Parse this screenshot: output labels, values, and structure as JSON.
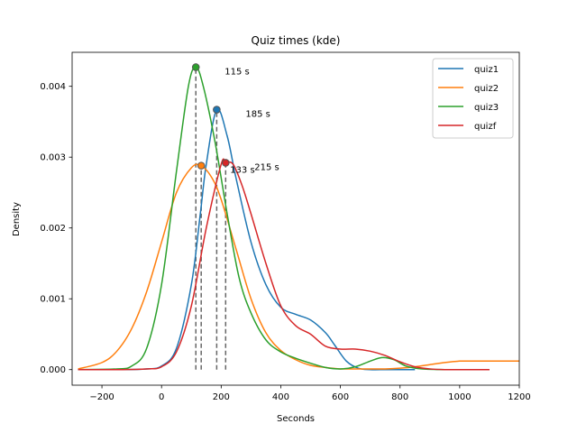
{
  "chart_data": {
    "type": "line",
    "title": "Quiz times (kde)",
    "xlabel": "Seconds",
    "ylabel": "Density",
    "xlim": [
      -300,
      1200
    ],
    "ylim": [
      -0.00022,
      0.00448
    ],
    "x_ticks": [
      -200,
      0,
      200,
      400,
      600,
      800,
      1000,
      1200
    ],
    "x_tick_labels": [
      "−200",
      "0",
      "200",
      "400",
      "600",
      "800",
      "1000",
      "1200"
    ],
    "y_ticks": [
      0,
      0.001,
      0.002,
      0.003,
      0.004
    ],
    "y_tick_labels": [
      "0.000",
      "0.001",
      "0.002",
      "0.003",
      "0.004"
    ],
    "grid": false,
    "legend_position": "top-right",
    "series": [
      {
        "name": "quiz1",
        "color": "#1f77b4",
        "x": [
          -280,
          -150,
          -50,
          0,
          50,
          100,
          130,
          150,
          185,
          220,
          250,
          300,
          350,
          400,
          450,
          500,
          550,
          580,
          620,
          660,
          700,
          750,
          800,
          850
        ],
        "y": [
          0,
          0,
          1e-05,
          5e-05,
          0.0003,
          0.0012,
          0.0022,
          0.0029,
          0.00367,
          0.0033,
          0.0027,
          0.0018,
          0.0012,
          0.00088,
          0.00078,
          0.0007,
          0.00052,
          0.00035,
          0.00012,
          2e-05,
          0,
          0,
          0,
          0
        ]
      },
      {
        "name": "quiz2",
        "color": "#ff7f0e",
        "x": [
          -280,
          -200,
          -150,
          -100,
          -50,
          0,
          50,
          100,
          133,
          170,
          200,
          250,
          300,
          350,
          400,
          450,
          500,
          550,
          600,
          650,
          700,
          750,
          800,
          850,
          900,
          950,
          1000,
          1050,
          1100,
          1200
        ],
        "y": [
          1e-05,
          0.0001,
          0.00026,
          0.00058,
          0.0011,
          0.0018,
          0.0025,
          0.00285,
          0.00288,
          0.0027,
          0.0024,
          0.0017,
          0.001,
          0.00052,
          0.00027,
          0.00014,
          6e-05,
          3e-05,
          1e-05,
          1e-05,
          1e-05,
          1e-05,
          2e-05,
          4e-05,
          7e-05,
          0.0001,
          0.00012,
          0.00012,
          0.00012,
          0.00012
        ]
      },
      {
        "name": "quiz3",
        "color": "#2ca02c",
        "x": [
          -280,
          -150,
          -100,
          -50,
          0,
          50,
          90,
          115,
          140,
          180,
          220,
          260,
          300,
          350,
          400,
          450,
          500,
          550,
          600,
          650,
          700,
          740,
          780,
          820,
          870,
          950,
          1050,
          1100
        ],
        "y": [
          0,
          1e-05,
          5e-05,
          0.0003,
          0.0012,
          0.0028,
          0.004,
          0.00427,
          0.004,
          0.0032,
          0.0022,
          0.0013,
          0.0008,
          0.00042,
          0.00025,
          0.00016,
          9e-05,
          3e-05,
          1e-05,
          4e-05,
          0.00012,
          0.00017,
          0.00014,
          5e-05,
          1e-05,
          0,
          0,
          0
        ]
      },
      {
        "name": "quizf",
        "color": "#d62728",
        "x": [
          -280,
          -150,
          -50,
          0,
          50,
          100,
          150,
          200,
          215,
          240,
          270,
          300,
          350,
          400,
          450,
          500,
          550,
          600,
          650,
          700,
          750,
          800,
          850,
          900,
          950,
          1000,
          1050,
          1100
        ],
        "y": [
          0,
          0,
          1e-05,
          4e-05,
          0.00025,
          0.0009,
          0.002,
          0.0029,
          0.00292,
          0.0029,
          0.0026,
          0.0022,
          0.0015,
          0.0009,
          0.00062,
          0.0005,
          0.00033,
          0.00029,
          0.00029,
          0.00026,
          0.0002,
          0.00011,
          4e-05,
          1e-05,
          0,
          0,
          0,
          0
        ]
      }
    ],
    "peaks": [
      {
        "series": "quiz3",
        "x": 115,
        "y": 0.00427,
        "label": "115 s"
      },
      {
        "series": "quiz1",
        "x": 185,
        "y": 0.00367,
        "label": "185 s"
      },
      {
        "series": "quiz2",
        "x": 133,
        "y": 0.00288,
        "label": "133 s"
      },
      {
        "series": "quizf",
        "x": 215,
        "y": 0.00292,
        "label": "215 s"
      }
    ]
  }
}
